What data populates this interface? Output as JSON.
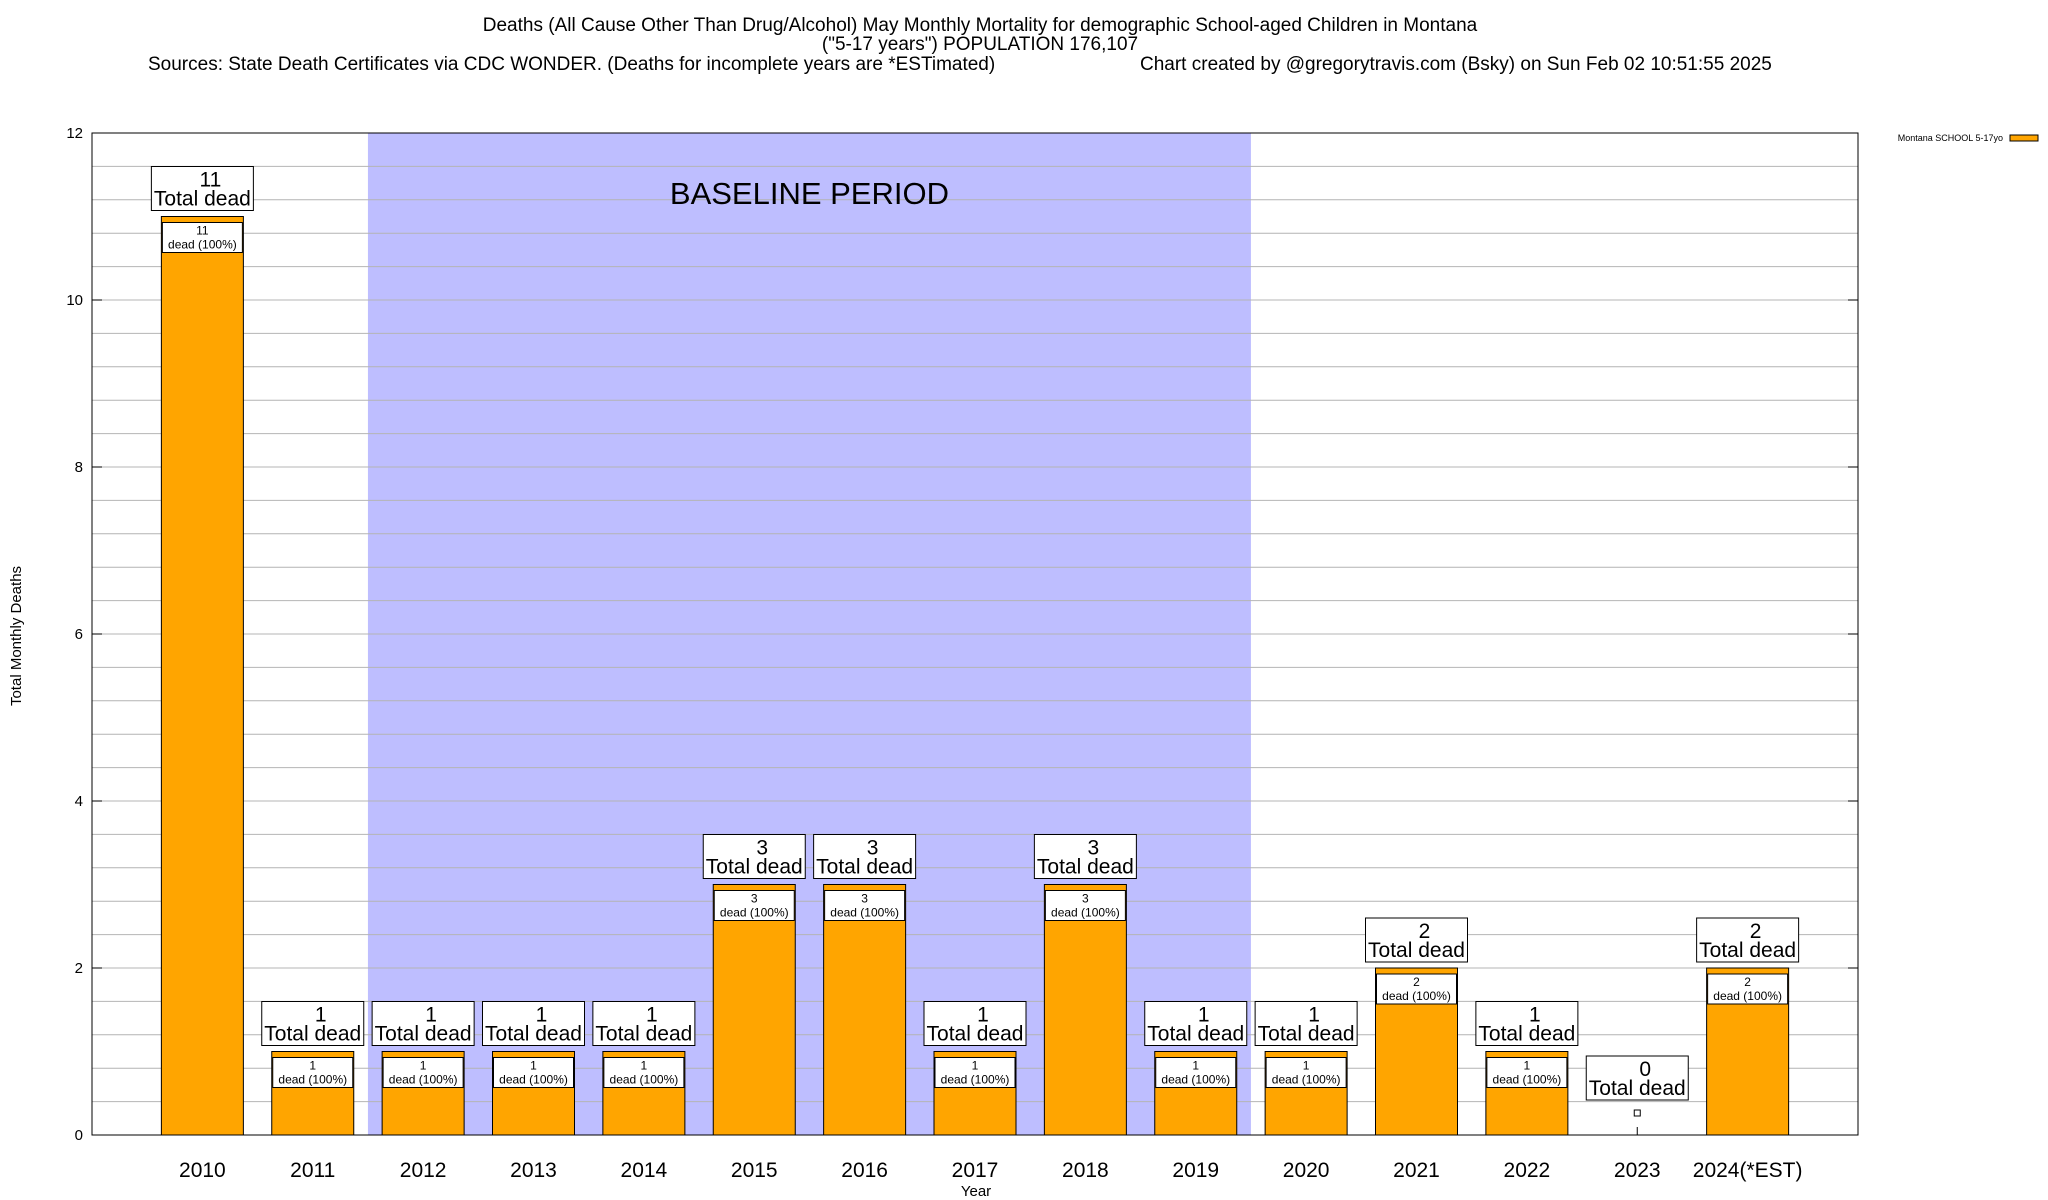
{
  "title": {
    "line1": "Deaths (All Cause Other Than Drug/Alcohol) May Monthly Mortality for demographic School-aged Children in Montana",
    "line2": "(\"5-17 years\") POPULATION 176,107",
    "line3_left": "Sources: State Death Certificates via CDC WONDER. (Deaths for incomplete years are *ESTimated)",
    "line3_right": "Chart created by @gregorytravis.com (Bsky) on Sun Feb 02 10:51:55 2025"
  },
  "baseline_label": "BASELINE PERIOD",
  "total_suffix": "Total dead",
  "inner_suffix": "dead (100%)",
  "colors": {
    "bar": "#FFA500",
    "baseline_band": "#BEBEFF",
    "grid": "#B4B4B4",
    "axis": "#000000"
  },
  "chart_data": {
    "type": "bar",
    "xlabel": "Year",
    "ylabel": "Total Monthly Deaths",
    "ylim": [
      0,
      12
    ],
    "yticks": [
      0,
      2,
      4,
      6,
      8,
      10,
      12
    ],
    "grid": true,
    "legend_position": "top-right",
    "baseline_period": [
      "2012",
      "2019"
    ],
    "categories": [
      "2010",
      "2011",
      "2012",
      "2013",
      "2014",
      "2015",
      "2016",
      "2017",
      "2018",
      "2019",
      "2020",
      "2021",
      "2022",
      "2023",
      "2024(*EST)"
    ],
    "series": [
      {
        "name": "Montana SCHOOL 5-17yo",
        "values": [
          11,
          1,
          1,
          1,
          1,
          3,
          3,
          1,
          3,
          1,
          1,
          2,
          1,
          0,
          2
        ]
      }
    ]
  }
}
